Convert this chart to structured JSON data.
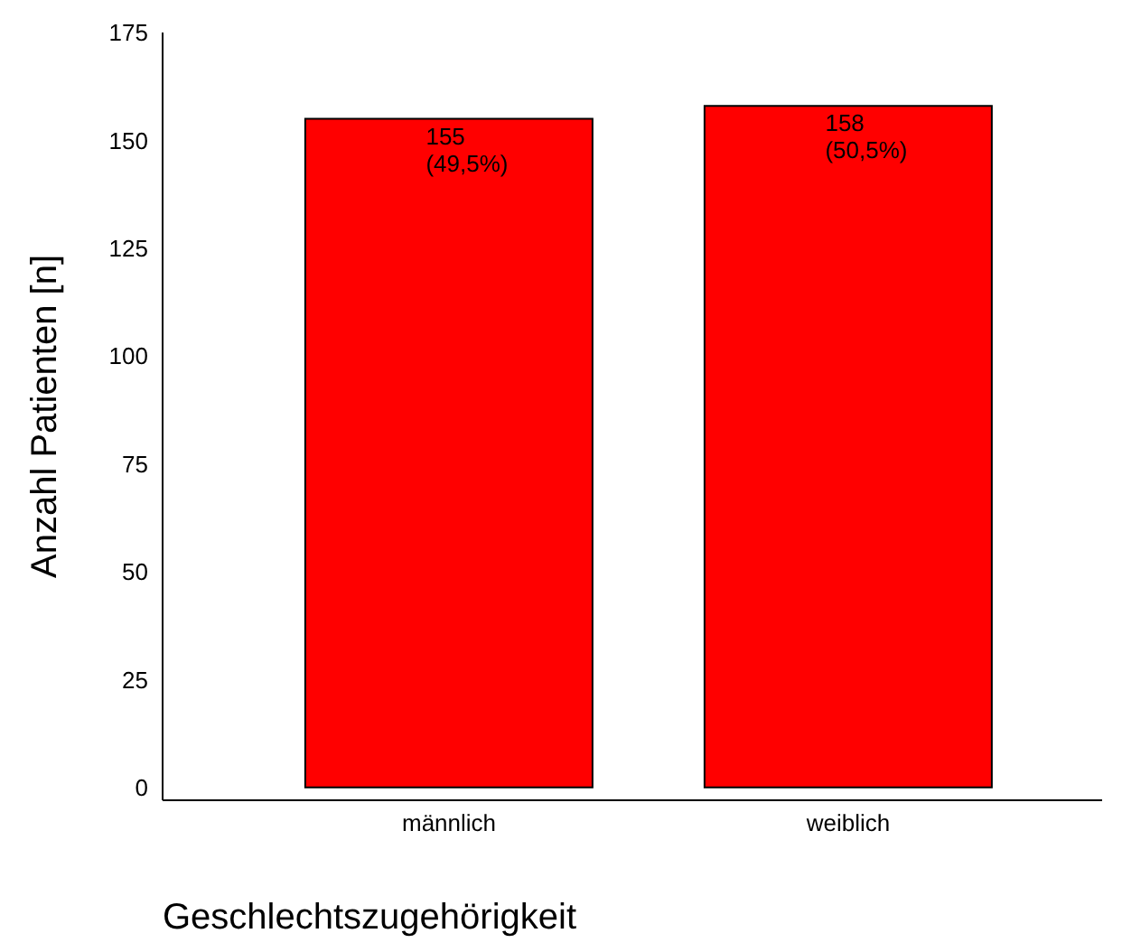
{
  "chart_data": {
    "type": "bar",
    "xlabel": "Geschlechtszugehörigkeit",
    "ylabel": "Anzahl Patienten [n]",
    "categories": [
      "männlich",
      "weiblich"
    ],
    "values": [
      155,
      158
    ],
    "value_labels": [
      "155 (49,5%)",
      "158 (50,5%)"
    ],
    "color": "#ff0000",
    "ylim": [
      -3,
      175
    ],
    "yticks": [
      0,
      25,
      50,
      75,
      100,
      125,
      150,
      175
    ],
    "grid": false,
    "legend": false
  }
}
